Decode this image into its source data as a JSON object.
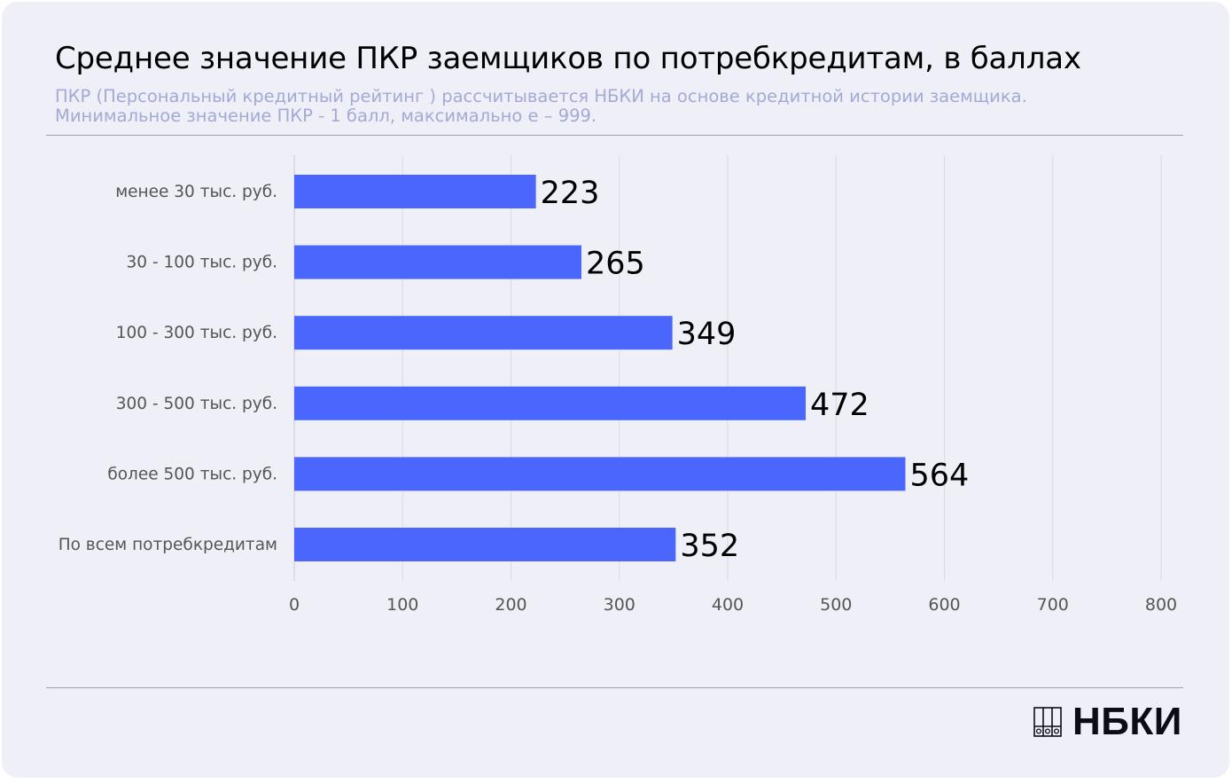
{
  "title": "Среднее значение ПКР заемщиков по потребкредитам, в баллах",
  "subtitle_lines": [
    "ПКР (Персональный кредитный рейтинг ) рассчитывается НБКИ на основе кредитной истории заемщика.",
    "Минимальное значение ПКР -  1 балл, максимально е – 999."
  ],
  "logo": {
    "text": "НБКИ",
    "icon": "nbki-logo-icon"
  },
  "colors": {
    "background": "#eeeff7",
    "bar": "#4a66fd",
    "label": "#000000",
    "category": "#555555",
    "grid": "#d9dae4",
    "subtitle": "#a5a9d6"
  },
  "chart_data": {
    "type": "bar",
    "orientation": "horizontal",
    "categories": [
      "менее 30 тыс. руб.",
      "30 - 100 тыс. руб.",
      "100 - 300 тыс. руб.",
      "300 - 500 тыс. руб.",
      "более 500 тыс. руб.",
      "По всем потребкредитам"
    ],
    "values": [
      223,
      265,
      349,
      472,
      564,
      352
    ],
    "xlim": [
      0,
      800
    ],
    "xticks": [
      0,
      100,
      200,
      300,
      400,
      500,
      600,
      700,
      800
    ],
    "grid": "vertical",
    "data_labels": true
  }
}
